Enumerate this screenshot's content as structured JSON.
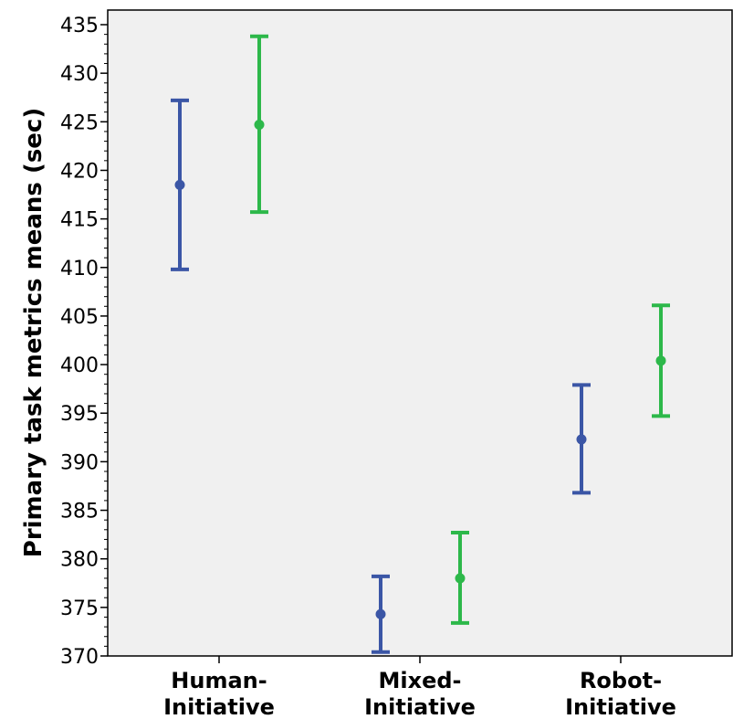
{
  "chart_data": {
    "type": "errorbar",
    "title": "",
    "xlabel": "",
    "ylabel": "Primary task metrics means (sec)",
    "ylim": [
      370,
      435
    ],
    "yticks": [
      370,
      375,
      380,
      385,
      390,
      395,
      400,
      405,
      410,
      415,
      420,
      425,
      430,
      435
    ],
    "categories": [
      [
        "Human-",
        "Initiative"
      ],
      [
        "Mixed-",
        "Initiative"
      ],
      [
        "Robot-",
        "Initiative"
      ]
    ],
    "grid": false,
    "legend": "none",
    "series": [
      {
        "color": "#3b56a6",
        "means": [
          418.5,
          374.3,
          392.3
        ],
        "lower": [
          409.8,
          370.4,
          386.8
        ],
        "upper": [
          427.2,
          378.2,
          397.9
        ]
      },
      {
        "color": "#2db84a",
        "means": [
          424.7,
          378.0,
          400.4
        ],
        "lower": [
          415.7,
          373.4,
          394.7
        ],
        "upper": [
          433.8,
          382.7,
          406.1
        ]
      }
    ],
    "background": "#f0f0f0"
  }
}
